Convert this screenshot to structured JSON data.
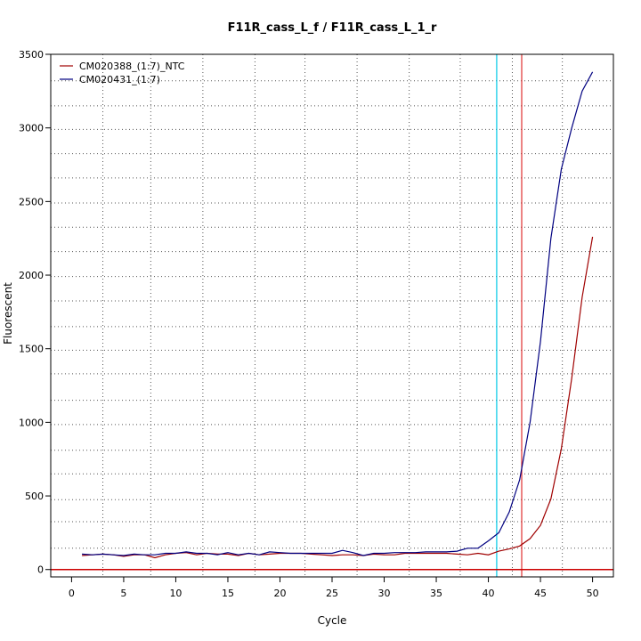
{
  "chart_data": {
    "type": "line",
    "title": "F11R_cass_L_f / F11R_cass_L_1_r",
    "xlabel": "Cycle",
    "ylabel": "Fluorescent",
    "xlim": [
      -2,
      52
    ],
    "ylim": [
      -50,
      3500
    ],
    "x_ticks": [
      0,
      5,
      10,
      15,
      20,
      25,
      30,
      35,
      40,
      45,
      50
    ],
    "y_ticks": [
      0,
      500,
      1000,
      1500,
      2000,
      2500,
      3000,
      3500
    ],
    "grid": {
      "vertical_dotted": [
        3,
        7.6,
        12.6,
        17.6,
        22.4,
        27.4,
        32.4,
        37.3,
        42.3,
        47.1
      ],
      "horizontal_dotted": [
        145,
        325,
        475,
        650,
        810,
        985,
        1150,
        1330,
        1490,
        1650,
        1825,
        1990,
        2160,
        2325,
        2490,
        2660,
        2825,
        2990,
        3150,
        3320
      ]
    },
    "legend_position": "top-left",
    "threshold": {
      "value": 0,
      "color": "#cc0000"
    },
    "cycle_markers": [
      {
        "x": 40.8,
        "color": "#00c8e6"
      },
      {
        "x": 43.2,
        "color": "#e03030"
      }
    ],
    "series": [
      {
        "name": "CM020388_(1:7)_NTC",
        "color": "#a00000",
        "x": [
          1,
          2,
          3,
          4,
          5,
          6,
          7,
          8,
          9,
          10,
          11,
          12,
          13,
          14,
          15,
          16,
          17,
          18,
          19,
          20,
          21,
          22,
          23,
          24,
          25,
          26,
          27,
          28,
          29,
          30,
          31,
          32,
          33,
          34,
          35,
          36,
          37,
          38,
          39,
          40,
          41,
          42,
          43,
          44,
          45,
          46,
          47,
          48,
          49,
          50
        ],
        "values": [
          95,
          100,
          105,
          100,
          90,
          100,
          100,
          80,
          100,
          110,
          115,
          100,
          110,
          105,
          105,
          95,
          110,
          100,
          105,
          110,
          110,
          110,
          105,
          100,
          95,
          100,
          100,
          95,
          105,
          100,
          100,
          110,
          110,
          110,
          110,
          110,
          105,
          100,
          110,
          100,
          125,
          140,
          160,
          210,
          300,
          480,
          820,
          1300,
          1850,
          2260
        ]
      },
      {
        "name": "CM020431_(1:7)",
        "color": "#000080",
        "x": [
          1,
          2,
          3,
          4,
          5,
          6,
          7,
          8,
          9,
          10,
          11,
          12,
          13,
          14,
          15,
          16,
          17,
          18,
          19,
          20,
          21,
          22,
          23,
          24,
          25,
          26,
          27,
          28,
          29,
          30,
          31,
          32,
          33,
          34,
          35,
          36,
          37,
          38,
          39,
          40,
          41,
          42,
          43,
          44,
          45,
          46,
          47,
          48,
          49,
          50
        ],
        "values": [
          105,
          100,
          105,
          100,
          95,
          105,
          100,
          100,
          110,
          110,
          120,
          110,
          110,
          100,
          115,
          100,
          110,
          100,
          120,
          115,
          110,
          110,
          110,
          110,
          110,
          130,
          115,
          95,
          110,
          110,
          115,
          115,
          115,
          120,
          120,
          120,
          125,
          145,
          145,
          195,
          250,
          390,
          610,
          1000,
          1550,
          2250,
          2720,
          3000,
          3250,
          3380
        ]
      }
    ]
  }
}
